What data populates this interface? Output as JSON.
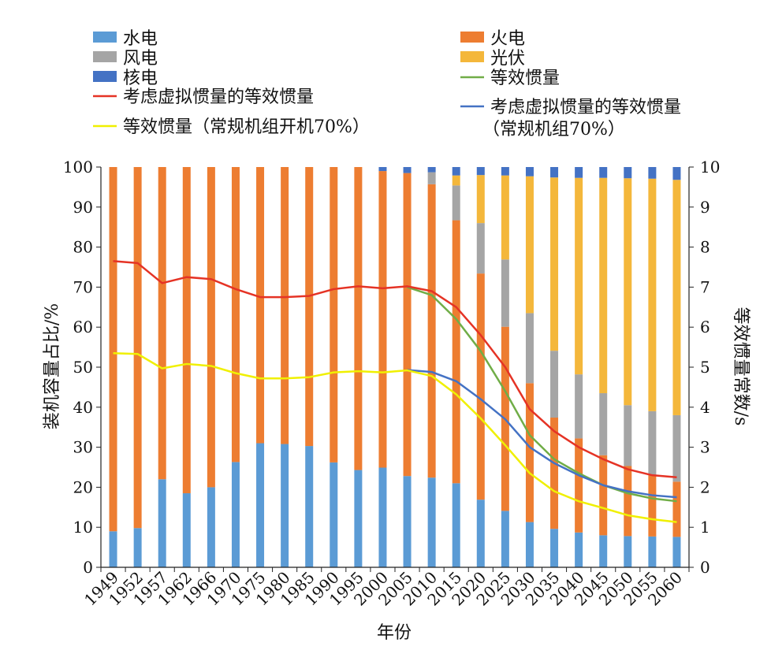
{
  "chart_data": {
    "type": "bar",
    "stacked": true,
    "secondary_axis": true,
    "categories": [
      "1949",
      "1952",
      "1957",
      "1962",
      "1966",
      "1970",
      "1975",
      "1980",
      "1985",
      "1990",
      "1995",
      "2000",
      "2005",
      "2010",
      "2015",
      "2020",
      "2025",
      "2030",
      "2035",
      "2040",
      "2045",
      "2050",
      "2055",
      "2060"
    ],
    "xlabel": "年份",
    "ylabel": "装机容量占比/%",
    "y2label": "等效惯量常数/s",
    "ylim": [
      0,
      100
    ],
    "y2lim": [
      0,
      10
    ],
    "yticks": [
      "0",
      "10",
      "20",
      "30",
      "40",
      "50",
      "60",
      "70",
      "80",
      "90",
      "100"
    ],
    "y2ticks": [
      "0",
      "1",
      "2",
      "3",
      "4",
      "5",
      "6",
      "7",
      "8",
      "9",
      "10"
    ],
    "grid": false,
    "legend_position": "top",
    "bar_series": [
      {
        "name": "水电",
        "color": "#5b9bd5",
        "values": [
          9,
          9.8,
          22,
          18.5,
          20,
          26.3,
          31,
          30.8,
          30.3,
          26.2,
          24.3,
          24.9,
          22.8,
          22.4,
          21,
          16.9,
          14.1,
          11.3,
          9.6,
          8.7,
          8,
          7.8,
          7.7,
          7.6
        ]
      },
      {
        "name": "火电",
        "color": "#ed7d31",
        "values": [
          91,
          90.2,
          78,
          81.5,
          80,
          73.7,
          69,
          69.2,
          69.7,
          73.8,
          75.7,
          74.1,
          75.7,
          73.3,
          65.7,
          56.5,
          46,
          34.7,
          27.8,
          23.5,
          20,
          17.5,
          15.3,
          13.8
        ]
      },
      {
        "name": "风电",
        "color": "#a5a5a5",
        "values": [
          0,
          0,
          0,
          0,
          0,
          0,
          0,
          0,
          0,
          0,
          0,
          0,
          0,
          3,
          8.7,
          12.6,
          16.8,
          17.5,
          16.7,
          16,
          15.5,
          15.2,
          16,
          16.6
        ]
      },
      {
        "name": "光伏",
        "color": "#f4b73b",
        "values": [
          0,
          0,
          0,
          0,
          0,
          0,
          0,
          0,
          0,
          0,
          0,
          0,
          0,
          0,
          2.5,
          12,
          21,
          34.2,
          43.3,
          49.1,
          53.8,
          56.7,
          58.1,
          58.8
        ]
      },
      {
        "name": "核电",
        "color": "#4472c4",
        "values": [
          0,
          0,
          0,
          0,
          0,
          0,
          0,
          0,
          0,
          0,
          0,
          1,
          1.5,
          1.3,
          2.1,
          2,
          2.1,
          2.3,
          2.6,
          2.7,
          2.7,
          2.8,
          2.9,
          3.2
        ]
      }
    ],
    "line_series": [
      {
        "name": "等效惯量",
        "color": "#70ad47",
        "values": [
          null,
          null,
          null,
          null,
          null,
          null,
          null,
          null,
          null,
          null,
          null,
          null,
          7.0,
          6.8,
          6.2,
          5.4,
          4.4,
          3.3,
          2.7,
          2.35,
          2.05,
          1.85,
          1.72,
          1.65
        ]
      },
      {
        "name": "考虑虚拟惯量的等效惯量",
        "color": "#e53325",
        "values": [
          7.65,
          7.6,
          7.1,
          7.25,
          7.2,
          6.95,
          6.75,
          6.75,
          6.78,
          6.95,
          7.02,
          6.97,
          7.02,
          6.9,
          6.5,
          5.8,
          5.0,
          3.95,
          3.4,
          3.0,
          2.7,
          2.45,
          2.3,
          2.25
        ]
      },
      {
        "name": "考虑虚拟惯量的等效惯量（常规机组70%）",
        "legend_lines": [
          "考虑虚拟惯量的等效惯量",
          "（常规机组70%）"
        ],
        "color": "#4472c4",
        "values": [
          null,
          null,
          null,
          null,
          null,
          null,
          null,
          null,
          null,
          null,
          null,
          null,
          4.93,
          4.88,
          4.65,
          4.2,
          3.7,
          3.0,
          2.6,
          2.3,
          2.05,
          1.9,
          1.8,
          1.75
        ]
      },
      {
        "name": "等效惯量（常规机组开机70%）",
        "color": "#f0f000",
        "values": [
          5.35,
          5.33,
          4.97,
          5.08,
          5.03,
          4.85,
          4.72,
          4.72,
          4.75,
          4.87,
          4.9,
          4.87,
          4.92,
          4.78,
          4.32,
          3.72,
          3.05,
          2.35,
          1.9,
          1.65,
          1.48,
          1.3,
          1.2,
          1.13
        ]
      }
    ]
  },
  "legend": [
    {
      "key": "hydro",
      "label": "水电",
      "kind": "box",
      "color": "#5b9bd5"
    },
    {
      "key": "thermal",
      "label": "火电",
      "kind": "box",
      "color": "#ed7d31"
    },
    {
      "key": "wind",
      "label": "风电",
      "kind": "box",
      "color": "#a5a5a5"
    },
    {
      "key": "pv",
      "label": "光伏",
      "kind": "box",
      "color": "#f4b73b"
    },
    {
      "key": "nuclear",
      "label": "核电",
      "kind": "box",
      "color": "#4472c4"
    },
    {
      "key": "eq-inertia",
      "label": "等效惯量",
      "kind": "line",
      "color": "#70ad47"
    },
    {
      "key": "virtual",
      "label": "考虑虚拟惯量的等效惯量",
      "kind": "line",
      "color": "#e53325"
    },
    {
      "key": "virtual-70",
      "label": "考虑虚拟惯量的等效惯量",
      "label2": "（常规机组70%）",
      "kind": "line",
      "color": "#4472c4"
    },
    {
      "key": "eq-70",
      "label": "等效惯量（常规机组开机70%）",
      "kind": "line",
      "color": "#f0f000"
    }
  ]
}
